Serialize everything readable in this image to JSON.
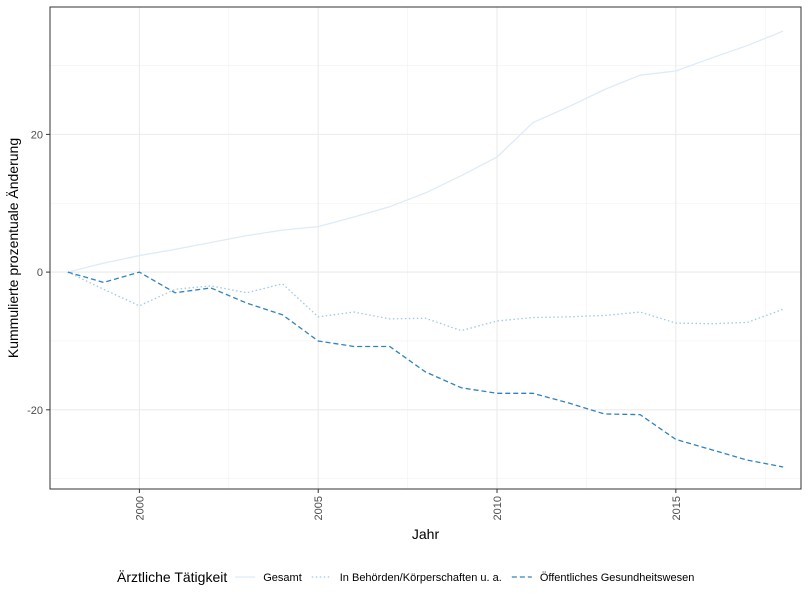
{
  "chart_data": {
    "type": "line",
    "xlabel": "Jahr",
    "ylabel": "Kummulierte prozentuale Änderung",
    "xlim": [
      1997.5,
      2018.5
    ],
    "ylim": [
      -31.5,
      38.5
    ],
    "x_ticks": [
      2000,
      2005,
      2010,
      2015
    ],
    "y_ticks": [
      -20,
      0,
      20
    ],
    "x_tick_labels": [
      "2000",
      "2005",
      "2010",
      "2015"
    ],
    "y_tick_labels": [
      "-20",
      "0",
      "20"
    ],
    "grid": true,
    "legend": {
      "title": "Ärztliche Tätigkeit",
      "position": "bottom"
    },
    "x": [
      1998,
      1999,
      2000,
      2001,
      2002,
      2003,
      2004,
      2005,
      2006,
      2007,
      2008,
      2009,
      2010,
      2011,
      2012,
      2013,
      2014,
      2015,
      2016,
      2017,
      2018
    ],
    "series": [
      {
        "name": "Gesamt",
        "color": "#deebf7",
        "dash": "solid",
        "values": [
          0,
          1.3,
          2.4,
          3.3,
          4.3,
          5.3,
          6.1,
          6.6,
          8.0,
          9.5,
          11.5,
          14.0,
          16.7,
          21.7,
          24.0,
          26.5,
          28.6,
          29.2,
          31.1,
          32.9,
          35.0
        ]
      },
      {
        "name": "In Behörden/Körperschaften u. a.",
        "color": "#9ecae1",
        "dash": "dotted",
        "values": [
          0,
          -2.5,
          -4.9,
          -2.5,
          -2.0,
          -3.0,
          -1.7,
          -6.5,
          -5.8,
          -6.8,
          -6.7,
          -8.5,
          -7.1,
          -6.6,
          -6.5,
          -6.3,
          -5.8,
          -7.4,
          -7.5,
          -7.3,
          -5.4
        ]
      },
      {
        "name": "Öffentliches Gesundheitswesen",
        "color": "#3182bd",
        "dash": "dashed",
        "values": [
          0,
          -1.5,
          0,
          -3.0,
          -2.3,
          -4.5,
          -6.2,
          -10.0,
          -10.8,
          -10.8,
          -14.5,
          -16.8,
          -17.6,
          -17.6,
          -19.0,
          -20.6,
          -20.7,
          -24.3,
          -25.8,
          -27.3,
          -28.3
        ]
      }
    ]
  }
}
